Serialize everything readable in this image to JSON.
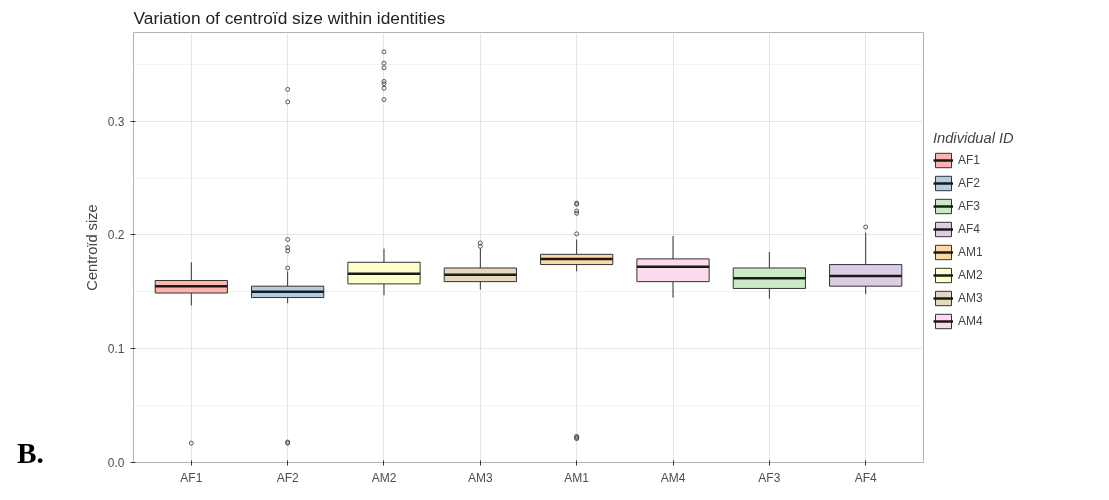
{
  "chart_data": {
    "type": "box",
    "title": "Variation of centroïd size within identities",
    "ylabel": "Centroïd size",
    "legend_title": "Individual ID",
    "legend": "right",
    "grid": true,
    "categories": [
      "AF1",
      "AF2",
      "AM2",
      "AM3",
      "AM1",
      "AM4",
      "AF3",
      "AF4"
    ],
    "ylim": [
      0,
      0.378
    ],
    "yticks": [
      {
        "value": 0,
        "label": "0.0"
      },
      0.1,
      0.2,
      0.3
    ],
    "annotations": [
      "B."
    ],
    "series": [
      {
        "name": "AF1",
        "color": "#fbb4ae",
        "x": [
          "AF1"
        ],
        "boxes": [
          {
            "low": 0.138,
            "q1": 0.149,
            "median": 0.155,
            "q3": 0.16,
            "high": 0.176,
            "outliers": [
              0.017
            ]
          }
        ]
      },
      {
        "name": "AF2",
        "color": "#b3cde3",
        "x": [
          "AF2"
        ],
        "boxes": [
          {
            "low": 0.14,
            "q1": 0.145,
            "median": 0.15,
            "q3": 0.155,
            "high": 0.168,
            "outliers": [
              0.017,
              0.018,
              0.171,
              0.186,
              0.189,
              0.196,
              0.317,
              0.328
            ]
          }
        ]
      },
      {
        "name": "AF3",
        "color": "#ccebc5",
        "x": [
          "AF3"
        ],
        "boxes": [
          {
            "low": 0.144,
            "q1": 0.153,
            "median": 0.162,
            "q3": 0.171,
            "high": 0.185
          }
        ]
      },
      {
        "name": "AF4",
        "color": "#decbe4",
        "x": [
          "AF4"
        ],
        "boxes": [
          {
            "low": 0.148,
            "q1": 0.155,
            "median": 0.164,
            "q3": 0.174,
            "high": 0.202,
            "outliers": [
              0.207
            ]
          }
        ]
      },
      {
        "name": "AM1",
        "color": "#fed9a6",
        "x": [
          "AM1"
        ],
        "boxes": [
          {
            "low": 0.168,
            "q1": 0.174,
            "median": 0.179,
            "q3": 0.183,
            "high": 0.196,
            "outliers": [
              0.021,
              0.022,
              0.023,
              0.201,
              0.219,
              0.221,
              0.227,
              0.228
            ]
          }
        ]
      },
      {
        "name": "AM2",
        "color": "#ffffcc",
        "x": [
          "AM2"
        ],
        "boxes": [
          {
            "low": 0.147,
            "q1": 0.157,
            "median": 0.166,
            "q3": 0.176,
            "high": 0.188,
            "outliers": [
              0.319,
              0.329,
              0.333,
              0.335,
              0.347,
              0.351,
              0.361
            ]
          }
        ]
      },
      {
        "name": "AM3",
        "color": "#e5d8bd",
        "x": [
          "AM3"
        ],
        "boxes": [
          {
            "low": 0.152,
            "q1": 0.159,
            "median": 0.165,
            "q3": 0.171,
            "high": 0.188,
            "outliers": [
              0.19,
              0.193
            ]
          }
        ]
      },
      {
        "name": "AM4",
        "color": "#fddaec",
        "x": [
          "AM4"
        ],
        "boxes": [
          {
            "low": 0.145,
            "q1": 0.159,
            "median": 0.172,
            "q3": 0.179,
            "high": 0.199
          }
        ]
      }
    ]
  }
}
